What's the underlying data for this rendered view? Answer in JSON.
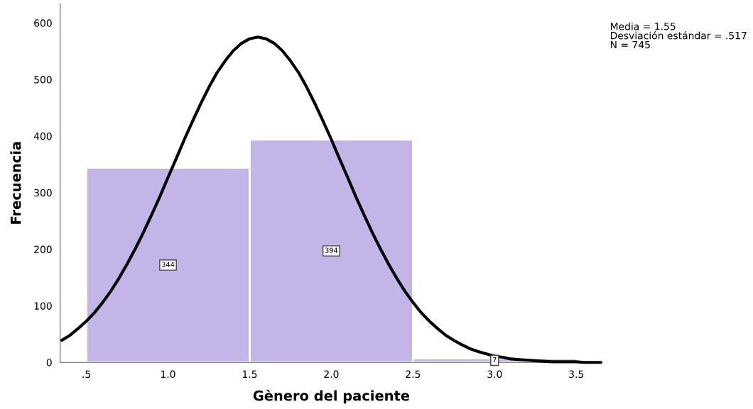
{
  "chart_data": {
    "type": "histogram",
    "xlabel": "Gènero del paciente",
    "ylabel": "Frecuencia",
    "bins": [
      0.5,
      1.5,
      2.5,
      3.5
    ],
    "values": [
      344,
      394,
      7
    ],
    "color": "#c3b5e8",
    "value_labels": [
      "344",
      "394",
      "7"
    ],
    "series": [
      {
        "type": "line",
        "color": "#000000",
        "x": [
          0.35,
          0.4,
          0.45,
          0.5,
          0.55,
          0.6,
          0.65,
          0.7,
          0.75,
          0.8,
          0.85,
          0.9,
          0.95,
          1.0,
          1.05,
          1.1,
          1.15,
          1.2,
          1.25,
          1.3,
          1.35,
          1.4,
          1.45,
          1.5,
          1.55,
          1.6,
          1.65,
          1.7,
          1.75,
          1.8,
          1.85,
          1.9,
          1.95,
          2.0,
          2.05,
          2.1,
          2.15,
          2.2,
          2.25,
          2.3,
          2.35,
          2.4,
          2.45,
          2.5,
          2.55,
          2.6,
          2.65,
          2.7,
          2.75,
          2.8,
          2.85,
          2.9,
          2.95,
          3.0,
          3.05,
          3.1,
          3.15,
          3.2,
          3.25,
          3.3,
          3.35,
          3.4,
          3.45,
          3.5,
          3.55,
          3.6,
          3.65
        ],
        "values": [
          39,
          48,
          60,
          73,
          88,
          106,
          126,
          149,
          174,
          201,
          230,
          261,
          293,
          327,
          360,
          394,
          426,
          457,
          486,
          512,
          533,
          551,
          564,
          572,
          575,
          572,
          564,
          551,
          533,
          512,
          486,
          457,
          426,
          394,
          360,
          327,
          293,
          261,
          230,
          201,
          174,
          149,
          126,
          106,
          88,
          73,
          60,
          48,
          39,
          31,
          24,
          19,
          15,
          11,
          9,
          6,
          5,
          4,
          3,
          2,
          1,
          1,
          1,
          1,
          0,
          0,
          0
        ]
      }
    ],
    "annotations": [
      "Media = 1.55\nDesviación estándar = .517\nN = 745"
    ],
    "xlim": [
      0.34,
      3.66
    ],
    "ylim": [
      0,
      634
    ],
    "xticks": [
      {
        "value": 0.5,
        "label": ".5"
      },
      {
        "value": 1.0,
        "label": "1.0"
      },
      {
        "value": 1.5,
        "label": "1.5"
      },
      {
        "value": 2.0,
        "label": "2.0"
      },
      {
        "value": 2.5,
        "label": "2.5"
      },
      {
        "value": 3.0,
        "label": "3.0"
      },
      {
        "value": 3.5,
        "label": "3.5"
      }
    ],
    "yticks": [
      0,
      100,
      200,
      300,
      400,
      500,
      600
    ],
    "grid": false,
    "legend": false
  }
}
